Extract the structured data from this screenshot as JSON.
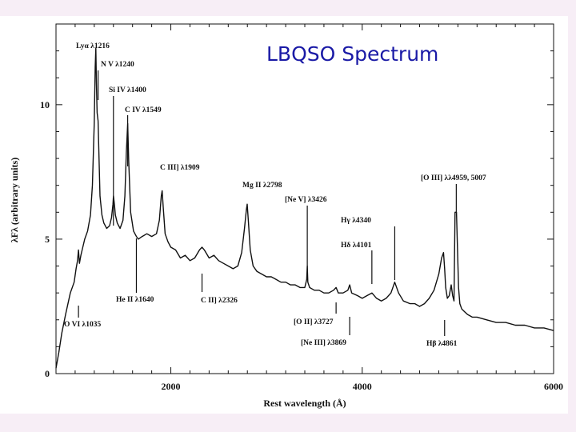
{
  "slide": {
    "title": "LBQSO Spectrum",
    "title_color": "#1a1aa6",
    "background": "#f7eef6"
  },
  "chart_data": {
    "type": "line",
    "title": "",
    "xlabel": "Rest wavelength (Å)",
    "ylabel": "λFλ (arbitrary units)",
    "xlim": [
      800,
      6000
    ],
    "ylim": [
      0,
      13
    ],
    "xticks": [
      "2000",
      "4000",
      "6000"
    ],
    "yticks": [
      "0",
      "5",
      "10"
    ],
    "grid": false,
    "legend": "none",
    "series": [
      {
        "color": "#111111",
        "x": [
          800,
          830,
          860,
          900,
          950,
          990,
          1010,
          1025,
          1035,
          1045,
          1060,
          1080,
          1100,
          1130,
          1160,
          1180,
          1200,
          1210,
          1216,
          1222,
          1230,
          1240,
          1250,
          1260,
          1280,
          1300,
          1330,
          1360,
          1380,
          1395,
          1400,
          1410,
          1420,
          1440,
          1470,
          1500,
          1520,
          1535,
          1549,
          1560,
          1580,
          1610,
          1640,
          1660,
          1700,
          1750,
          1800,
          1850,
          1880,
          1900,
          1909,
          1920,
          1940,
          1970,
          2000,
          2050,
          2100,
          2150,
          2200,
          2250,
          2300,
          2326,
          2350,
          2400,
          2450,
          2500,
          2550,
          2600,
          2650,
          2700,
          2740,
          2770,
          2790,
          2798,
          2810,
          2830,
          2860,
          2900,
          2950,
          3000,
          3050,
          3100,
          3150,
          3200,
          3250,
          3300,
          3350,
          3400,
          3420,
          3426,
          3432,
          3450,
          3500,
          3550,
          3600,
          3650,
          3700,
          3727,
          3750,
          3800,
          3850,
          3869,
          3890,
          3950,
          4000,
          4050,
          4101,
          4150,
          4200,
          4250,
          4300,
          4340,
          4380,
          4430,
          4500,
          4550,
          4600,
          4650,
          4700,
          4750,
          4800,
          4830,
          4850,
          4861,
          4872,
          4890,
          4910,
          4930,
          4945,
          4959,
          4970,
          4985,
          5007,
          5020,
          5040,
          5070,
          5100,
          5150,
          5200,
          5300,
          5400,
          5500,
          5600,
          5700,
          5800,
          5900,
          6000
        ],
        "y": [
          0.2,
          0.8,
          1.5,
          2.2,
          3.0,
          3.4,
          3.9,
          4.2,
          4.6,
          4.1,
          4.4,
          4.7,
          5.0,
          5.3,
          5.9,
          7.0,
          9.3,
          11.4,
          12.1,
          10.8,
          9.7,
          9.4,
          8.0,
          6.6,
          5.9,
          5.6,
          5.4,
          5.5,
          5.8,
          6.3,
          6.6,
          6.3,
          5.9,
          5.6,
          5.4,
          5.7,
          6.6,
          8.2,
          9.3,
          7.9,
          6.0,
          5.3,
          5.1,
          5.0,
          5.1,
          5.2,
          5.1,
          5.2,
          5.7,
          6.6,
          6.8,
          6.2,
          5.2,
          4.9,
          4.7,
          4.6,
          4.3,
          4.4,
          4.2,
          4.3,
          4.6,
          4.7,
          4.6,
          4.3,
          4.4,
          4.2,
          4.1,
          4.0,
          3.9,
          4.0,
          4.5,
          5.4,
          6.1,
          6.3,
          5.7,
          4.6,
          4.0,
          3.8,
          3.7,
          3.6,
          3.6,
          3.5,
          3.4,
          3.4,
          3.3,
          3.3,
          3.2,
          3.2,
          3.5,
          4.0,
          3.4,
          3.2,
          3.1,
          3.1,
          3.0,
          3.0,
          3.1,
          3.2,
          3.0,
          3.0,
          3.1,
          3.3,
          3.0,
          2.9,
          2.8,
          2.9,
          3.0,
          2.8,
          2.7,
          2.8,
          3.0,
          3.4,
          3.0,
          2.7,
          2.6,
          2.6,
          2.5,
          2.6,
          2.8,
          3.1,
          3.7,
          4.3,
          4.5,
          3.9,
          3.2,
          2.8,
          2.9,
          3.3,
          2.9,
          2.7,
          6.0,
          6.0,
          3.2,
          2.6,
          2.4,
          2.3,
          2.2,
          2.1,
          2.1,
          2.0,
          1.9,
          1.9,
          1.8,
          1.8,
          1.7,
          1.7,
          1.6
        ]
      }
    ],
    "annotations": [
      {
        "text": "Lyα λ1216",
        "x": 1216,
        "side": "top"
      },
      {
        "text": "N V λ1240",
        "x": 1240,
        "side": "top"
      },
      {
        "text": "Si IV λ1400",
        "x": 1400,
        "side": "top"
      },
      {
        "text": "C IV λ1549",
        "x": 1549,
        "side": "top"
      },
      {
        "text": "C III] λ1909",
        "x": 1909,
        "side": "top"
      },
      {
        "text": "Mg II λ2798",
        "x": 2798,
        "side": "top"
      },
      {
        "text": "[Ne V] λ3426",
        "x": 3426,
        "side": "top"
      },
      {
        "text": "Hγ λ4340",
        "x": 4340,
        "side": "top"
      },
      {
        "text": "Hδ λ4101",
        "x": 4101,
        "side": "top"
      },
      {
        "text": "[O III] λλ4959, 5007",
        "x": 4983,
        "side": "top"
      },
      {
        "text": "O VI λ1035",
        "x": 1035,
        "side": "bottom"
      },
      {
        "text": "He II λ1640",
        "x": 1640,
        "side": "bottom"
      },
      {
        "text": "C II] λ2326",
        "x": 2326,
        "side": "bottom"
      },
      {
        "text": "[O II] λ3727",
        "x": 3727,
        "side": "bottom"
      },
      {
        "text": "[Ne III] λ3869",
        "x": 3869,
        "side": "bottom"
      },
      {
        "text": "Hβ λ4861",
        "x": 4861,
        "side": "bottom"
      }
    ]
  }
}
